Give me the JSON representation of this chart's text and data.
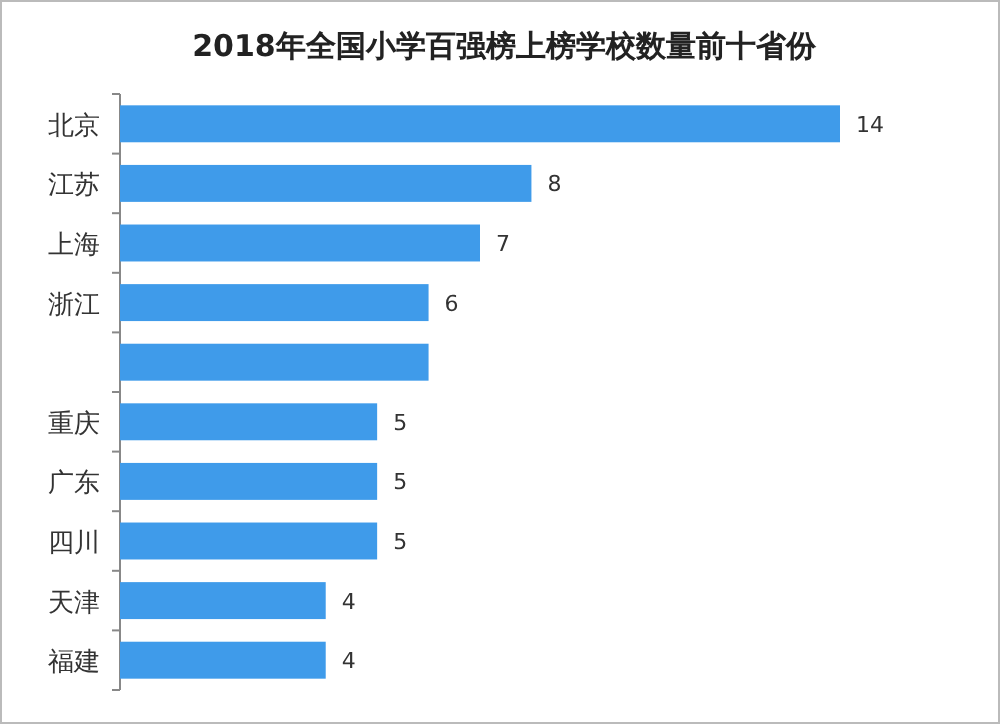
{
  "chart_data": {
    "type": "bar",
    "orientation": "horizontal",
    "title": "2018年全国小学百强榜上榜学校数量前十省份",
    "categories": [
      "北京",
      "江苏",
      "上海",
      "浙江",
      null,
      "重庆",
      "广东",
      "四川",
      "天津",
      "福建"
    ],
    "values": [
      14,
      8,
      7,
      6,
      6,
      5,
      5,
      5,
      4,
      4
    ],
    "value_labels": [
      "14",
      "8",
      "7",
      "6",
      null,
      "5",
      "5",
      "5",
      "4",
      "4"
    ],
    "color": "#3f9bea"
  }
}
